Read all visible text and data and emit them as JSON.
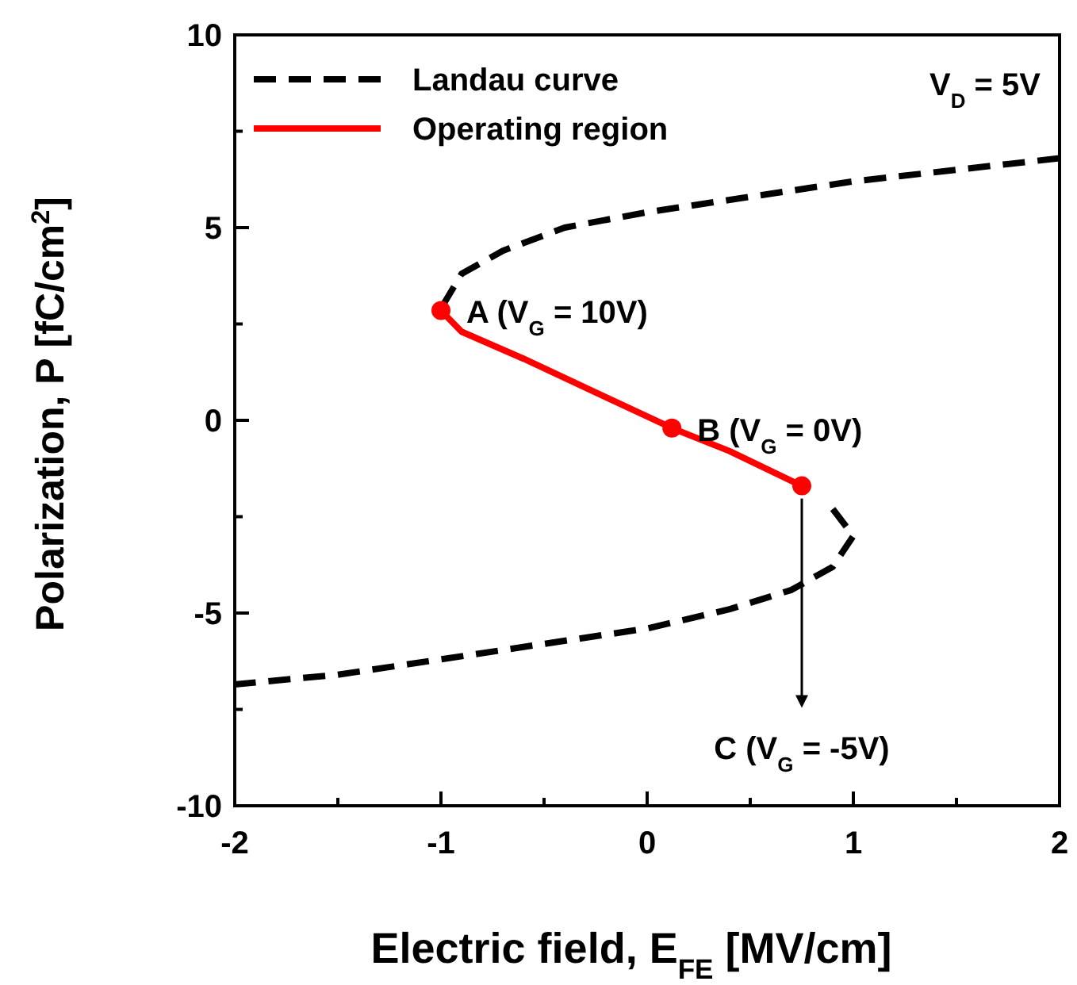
{
  "chart_data": {
    "type": "line",
    "xlabel": "Electric field, E$_{FE}$ [MV/cm]",
    "ylabel": "Polarization, P [fC/cm$^{2}$]",
    "xlim": [
      -2,
      2
    ],
    "ylim": [
      -10,
      10
    ],
    "xticks": [
      -2,
      {
        "value": -1.5,
        "label": null
      },
      -1,
      {
        "value": -0.5,
        "label": null
      },
      0,
      {
        "value": 0.5,
        "label": null
      },
      1,
      {
        "value": 1.5,
        "label": null
      },
      2
    ],
    "yticks": [
      -10,
      {
        "value": -7.5,
        "label": null
      },
      -5,
      {
        "value": -2.5,
        "label": null
      },
      0,
      {
        "value": 2.5,
        "label": null
      },
      5,
      {
        "value": 7.5,
        "label": null
      },
      10
    ],
    "grid": false,
    "legend": "top left",
    "series": [
      {
        "name": "Landau curve",
        "color": "#000000",
        "line_style": "dashed",
        "x": [
          2,
          1.5,
          1,
          0.5,
          0,
          -0.4,
          -0.7,
          -0.9,
          -1,
          -0.9,
          -0.6,
          -0.2,
          0.12,
          0.4,
          0.75,
          0.9,
          1,
          0.9,
          0.7,
          0.4,
          0,
          -0.5,
          -1,
          -1.5,
          -2
        ],
        "values": [
          6.8,
          6.5,
          6.2,
          5.8,
          5.4,
          5.0,
          4.4,
          3.8,
          2.9,
          null,
          null,
          null,
          null,
          null,
          null,
          -2.3,
          -3.0,
          -3.8,
          -4.4,
          -4.9,
          -5.4,
          -5.8,
          -6.2,
          -6.6,
          -6.85
        ]
      },
      {
        "name": "Operating region",
        "color": "#ff0000",
        "line_style": "solid",
        "x": [
          -1,
          -0.9,
          -0.6,
          -0.2,
          0.12,
          0.4,
          0.75
        ],
        "values": [
          2.85,
          2.3,
          1.6,
          0.6,
          -0.2,
          -0.8,
          -1.7
        ]
      },
      {
        "type": "scatter",
        "color": "#ff0000",
        "marker": "circle",
        "x": [
          -1,
          0.12,
          0.75
        ],
        "values": [
          2.85,
          -0.2,
          -1.7
        ]
      }
    ],
    "annotations": [
      {
        "text": "A (V$_{G}$ = 10V)",
        "x": -1,
        "y": 2.85
      },
      {
        "text": "B (V$_{G}$ = 0V)",
        "x": 0.12,
        "y": -0.2
      },
      {
        "text": "C (V$_{G}$ = -5V)",
        "x": 0.75,
        "y": -1.7
      },
      "V$_{D}$ = 5V"
    ]
  }
}
